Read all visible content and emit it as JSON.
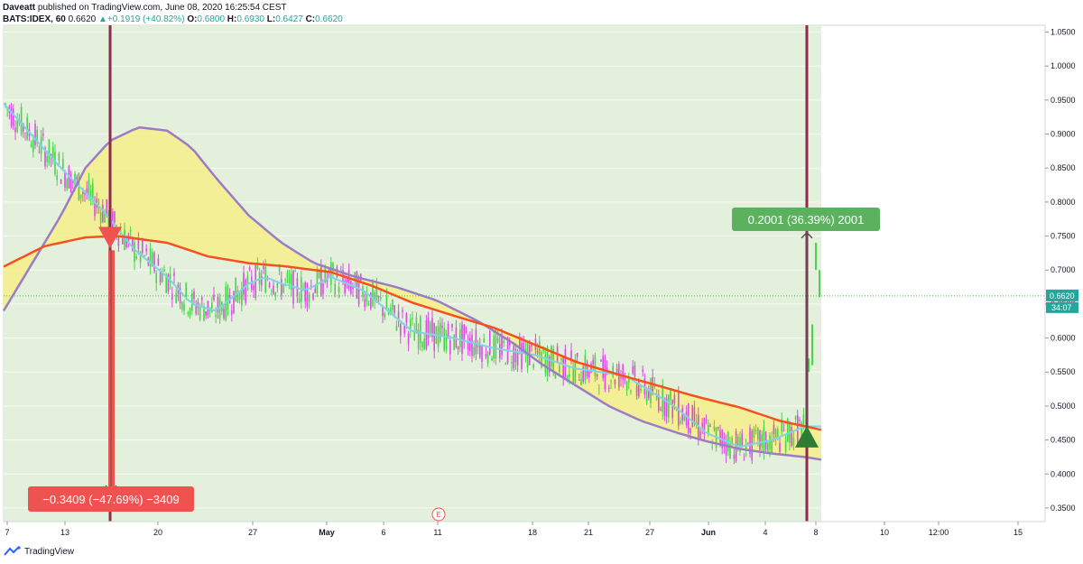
{
  "header": {
    "publisher": "Daveatt",
    "published_text": "published on TradingView.com, June 08, 2020 16:25:54 CEST",
    "symbol": "BATS:IDEX, 60",
    "last": "0.6620",
    "arrow": "▲",
    "change": "+0.1919 (+40.82%)",
    "o_label": "O:",
    "o_val": "0.6800",
    "h_label": "H:",
    "h_val": "0.6930",
    "l_label": "L:",
    "l_val": "0.6427",
    "c_label": "C:",
    "c_val": "0.6620"
  },
  "footer": {
    "brand": "TradingView"
  },
  "colors": {
    "bg_zone": "#e3f0dc",
    "cloud": "#f6ee8a",
    "ema_long": "#f5511e",
    "cloud_edge": "#9c7cc4",
    "ema_fast": "#7ed3e8",
    "bull": "#4cd34c",
    "bear": "#d84fe0",
    "vline": "#8e2b4a",
    "short_box": "#ef5350",
    "long_box": "#5cb15f",
    "price_line": "#48c048"
  },
  "chart_data": {
    "type": "candlestick",
    "symbol": "BATS:IDEX",
    "timeframe": "60",
    "price_axis": {
      "min": 0.33,
      "max": 1.06,
      "ticks": [
        "1.0500",
        "1.0000",
        "0.9500",
        "0.9000",
        "0.8500",
        "0.8000",
        "0.7500",
        "0.7000",
        "0.6500",
        "0.6000",
        "0.5500",
        "0.5000",
        "0.4500",
        "0.4000",
        "0.3500"
      ],
      "ticks_num": [
        1.05,
        1.0,
        0.95,
        0.9,
        0.85,
        0.8,
        0.75,
        0.7,
        0.65,
        0.6,
        0.55,
        0.5,
        0.45,
        0.4,
        0.35
      ]
    },
    "time_axis": {
      "labels": [
        "7",
        "13",
        "20",
        "27",
        "May",
        "6",
        "11",
        "18",
        "21",
        "27",
        "Jun",
        "4",
        "8",
        "10",
        "12:00",
        "15"
      ],
      "labels_bold": [
        "May",
        "Jun"
      ]
    },
    "last_price": {
      "value": 0.662,
      "label": "0.6620",
      "countdown": "34:07"
    },
    "fast_ma": [
      [
        0,
        0.945
      ],
      [
        0.07,
        0.85
      ],
      [
        0.12,
        0.79
      ],
      [
        0.16,
        0.73
      ],
      [
        0.2,
        0.69
      ],
      [
        0.23,
        0.65
      ],
      [
        0.26,
        0.64
      ],
      [
        0.3,
        0.68
      ],
      [
        0.32,
        0.69
      ],
      [
        0.34,
        0.68
      ],
      [
        0.37,
        0.67
      ],
      [
        0.4,
        0.69
      ],
      [
        0.44,
        0.67
      ],
      [
        0.47,
        0.64
      ],
      [
        0.5,
        0.61
      ],
      [
        0.55,
        0.6
      ],
      [
        0.6,
        0.585
      ],
      [
        0.65,
        0.575
      ],
      [
        0.7,
        0.555
      ],
      [
        0.76,
        0.545
      ],
      [
        0.82,
        0.5
      ],
      [
        0.86,
        0.46
      ],
      [
        0.9,
        0.44
      ],
      [
        0.94,
        0.45
      ],
      [
        0.98,
        0.47
      ],
      [
        1.0,
        0.47
      ]
    ],
    "long_ema": [
      [
        0,
        0.705
      ],
      [
        0.05,
        0.735
      ],
      [
        0.1,
        0.748
      ],
      [
        0.14,
        0.75
      ],
      [
        0.2,
        0.74
      ],
      [
        0.25,
        0.72
      ],
      [
        0.3,
        0.71
      ],
      [
        0.34,
        0.706
      ],
      [
        0.4,
        0.697
      ],
      [
        0.45,
        0.677
      ],
      [
        0.5,
        0.652
      ],
      [
        0.55,
        0.633
      ],
      [
        0.6,
        0.615
      ],
      [
        0.65,
        0.59
      ],
      [
        0.7,
        0.565
      ],
      [
        0.75,
        0.547
      ],
      [
        0.8,
        0.53
      ],
      [
        0.85,
        0.513
      ],
      [
        0.9,
        0.498
      ],
      [
        0.95,
        0.478
      ],
      [
        1.0,
        0.465
      ]
    ],
    "cloud_upper": [
      [
        0,
        0.64
      ],
      [
        0.03,
        0.7
      ],
      [
        0.07,
        0.78
      ],
      [
        0.1,
        0.85
      ],
      [
        0.13,
        0.89
      ],
      [
        0.165,
        0.91
      ],
      [
        0.2,
        0.905
      ],
      [
        0.23,
        0.88
      ],
      [
        0.26,
        0.835
      ],
      [
        0.3,
        0.78
      ],
      [
        0.34,
        0.74
      ],
      [
        0.38,
        0.71
      ],
      [
        0.43,
        0.69
      ],
      [
        0.48,
        0.675
      ],
      [
        0.53,
        0.655
      ],
      [
        0.58,
        0.625
      ],
      [
        0.62,
        0.595
      ],
      [
        0.66,
        0.56
      ],
      [
        0.7,
        0.53
      ],
      [
        0.74,
        0.5
      ],
      [
        0.78,
        0.478
      ],
      [
        0.82,
        0.462
      ],
      [
        0.86,
        0.448
      ],
      [
        0.9,
        0.437
      ],
      [
        0.94,
        0.43
      ],
      [
        0.98,
        0.425
      ],
      [
        1.0,
        0.421
      ]
    ],
    "signals": [
      {
        "type": "sell",
        "label": "−0.3409 (−47.69%) −3409",
        "entry": 0.745,
        "target": 0.375,
        "color": "short"
      },
      {
        "type": "buy",
        "label": "0.2001 (36.39%) 2001",
        "entry": 0.455,
        "target": 0.755,
        "color": "long"
      }
    ],
    "earnings_marker": "E"
  }
}
